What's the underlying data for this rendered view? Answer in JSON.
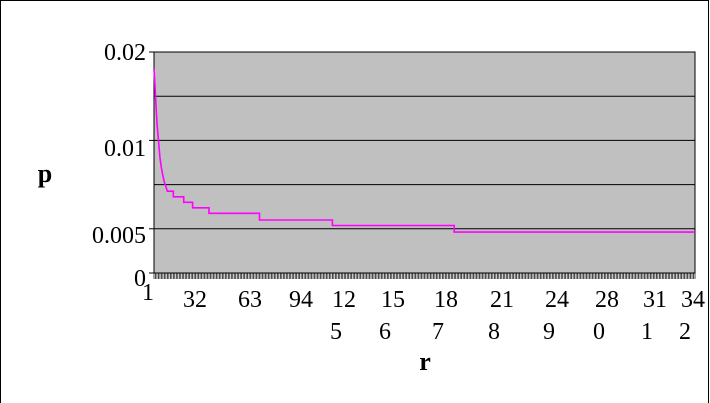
{
  "chart_data": {
    "type": "line",
    "title": "",
    "xlabel": "r",
    "ylabel": "p",
    "y_ticks": [
      "0",
      "0.005",
      "0.01",
      "0.02"
    ],
    "x_ticks": [
      {
        "top": "1",
        "bottom": ""
      },
      {
        "top": "32",
        "bottom": ""
      },
      {
        "top": "63",
        "bottom": ""
      },
      {
        "top": "94",
        "bottom": ""
      },
      {
        "top": "12",
        "bottom": "5"
      },
      {
        "top": "15",
        "bottom": "6"
      },
      {
        "top": "18",
        "bottom": "7"
      },
      {
        "top": "21",
        "bottom": "8"
      },
      {
        "top": "24",
        "bottom": "9"
      },
      {
        "top": "28",
        "bottom": "0"
      },
      {
        "top": "31",
        "bottom": "1"
      },
      {
        "top": "34",
        "bottom": "2"
      }
    ],
    "xlim": [
      1,
      365
    ],
    "series": [
      {
        "color": "#ff00ff",
        "points": [
          [
            1,
            0.0185
          ],
          [
            2,
            0.016
          ],
          [
            3,
            0.0135
          ],
          [
            4,
            0.012
          ],
          [
            5,
            0.0105
          ],
          [
            6,
            0.0095
          ],
          [
            7,
            0.0088
          ],
          [
            8,
            0.0082
          ],
          [
            9,
            0.0078
          ],
          [
            10,
            0.0074
          ],
          [
            11,
            0.0074
          ],
          [
            14,
            0.0074
          ],
          [
            14,
            0.0069
          ],
          [
            21,
            0.0069
          ],
          [
            21,
            0.0064
          ],
          [
            27,
            0.0064
          ],
          [
            27,
            0.0059
          ],
          [
            38,
            0.0059
          ],
          [
            38,
            0.0054
          ],
          [
            72,
            0.0054
          ],
          [
            72,
            0.0048
          ],
          [
            121,
            0.0048
          ],
          [
            121,
            0.0043
          ],
          [
            203,
            0.0043
          ],
          [
            203,
            0.0037
          ],
          [
            365,
            0.0037
          ]
        ]
      }
    ],
    "grid": "horizontal",
    "plot_background": "#c0c0c0",
    "colors": {
      "line": "#ff00ff",
      "plot_area": "#c0c0c0",
      "grid": "#000000"
    }
  }
}
